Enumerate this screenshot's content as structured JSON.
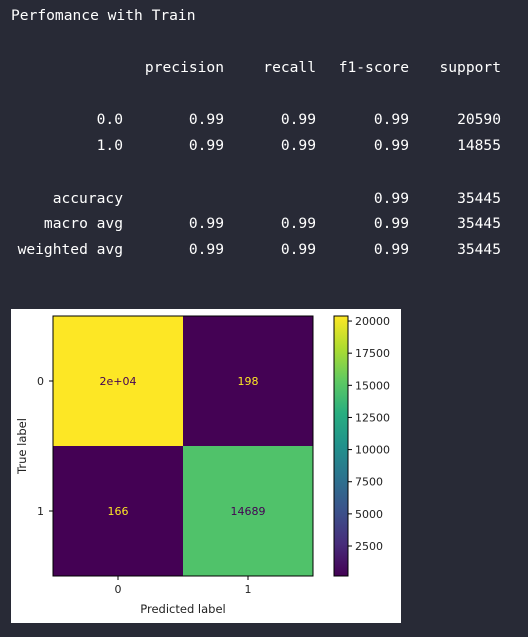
{
  "report": {
    "title": "Perfomance with Train",
    "headers": [
      "precision",
      "recall",
      "f1-score",
      "support"
    ],
    "rows": [
      {
        "label": "0.0",
        "precision": "0.99",
        "recall": "0.99",
        "f1": "0.99",
        "support": "20590"
      },
      {
        "label": "1.0",
        "precision": "0.99",
        "recall": "0.99",
        "f1": "0.99",
        "support": "14855"
      },
      {
        "label": "accuracy",
        "precision": "",
        "recall": "",
        "f1": "0.99",
        "support": "35445"
      },
      {
        "label": "macro avg",
        "precision": "0.99",
        "recall": "0.99",
        "f1": "0.99",
        "support": "35445"
      },
      {
        "label": "weighted avg",
        "precision": "0.99",
        "recall": "0.99",
        "f1": "0.99",
        "support": "35445"
      }
    ]
  },
  "chart_data": {
    "type": "heatmap",
    "cells": [
      [
        20392,
        198
      ],
      [
        166,
        14689
      ]
    ],
    "annotations": [
      [
        "2e+04",
        "198"
      ],
      [
        "166",
        "14689"
      ]
    ],
    "x_tick_labels": [
      "0",
      "1"
    ],
    "y_tick_labels": [
      "0",
      "1"
    ],
    "xlabel": "Predicted label",
    "ylabel": "True label",
    "colorbar_ticks": [
      20000,
      17500,
      15000,
      12500,
      10000,
      7500,
      5000,
      2500
    ],
    "colorbar_tick_labels": [
      "20000",
      "17500",
      "15000",
      "12500",
      "10000",
      "7500",
      "5000",
      "2500"
    ],
    "colorbar_range": [
      166,
      20392
    ],
    "colormap": "viridis",
    "colors": {
      "high": "#fde725",
      "low": "#440154",
      "mid_green": "#4ac16d",
      "text_light": "#fde725",
      "text_dark": "#440154"
    }
  }
}
